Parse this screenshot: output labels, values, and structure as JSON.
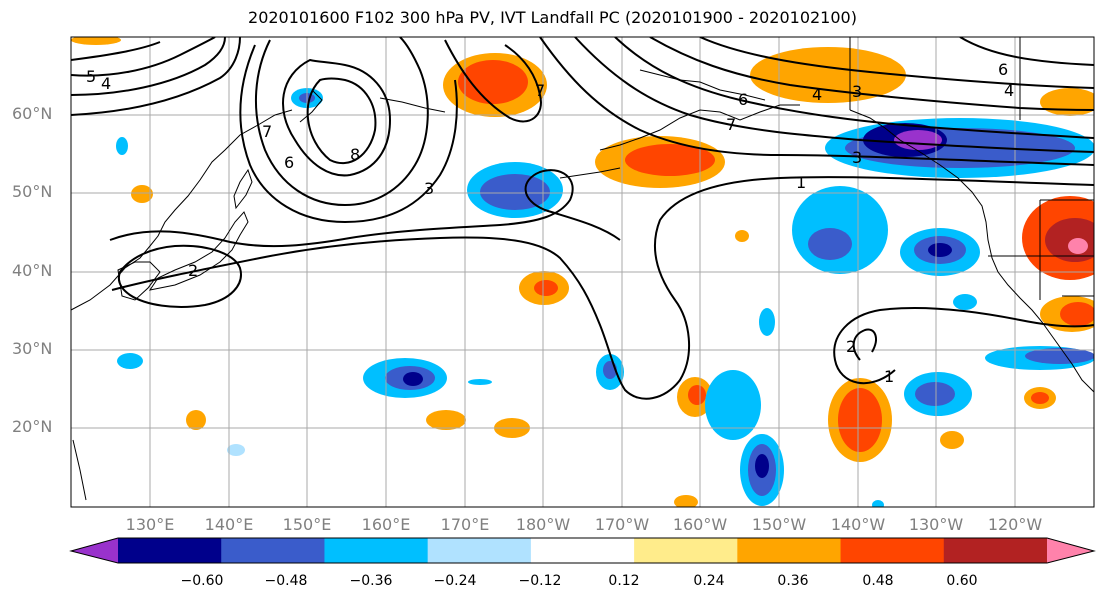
{
  "title": "2020101600 F102 300 hPa PV, IVT Landfall PC (2020101900 - 2020102100)",
  "lat_labels": [
    "60°N",
    "50°N",
    "40°N",
    "30°N",
    "20°N"
  ],
  "lon_labels": [
    "130°E",
    "140°E",
    "150°E",
    "160°E",
    "170°E",
    "180°W",
    "170°W",
    "160°W",
    "150°W",
    "140°W",
    "130°W",
    "120°W"
  ],
  "colorbar": {
    "tick_labels": [
      "−0.60",
      "−0.48",
      "−0.36",
      "−0.24",
      "−0.12",
      "0.12",
      "0.24",
      "0.36",
      "0.48",
      "0.60"
    ],
    "colors": [
      "#9932CC",
      "#00008B",
      "#3A5CCB",
      "#00BFFF",
      "#B0E2FF",
      "#FFFFFF",
      "#FFEC8B",
      "#FFA500",
      "#FF4500",
      "#B22222",
      "#FF82AB"
    ]
  },
  "contour_labels": [
    "5",
    "4",
    "7",
    "6",
    "8",
    "3",
    "2",
    "7",
    "6",
    "4",
    "3",
    "7",
    "6",
    "4",
    "3",
    "1",
    "2",
    "1"
  ]
}
